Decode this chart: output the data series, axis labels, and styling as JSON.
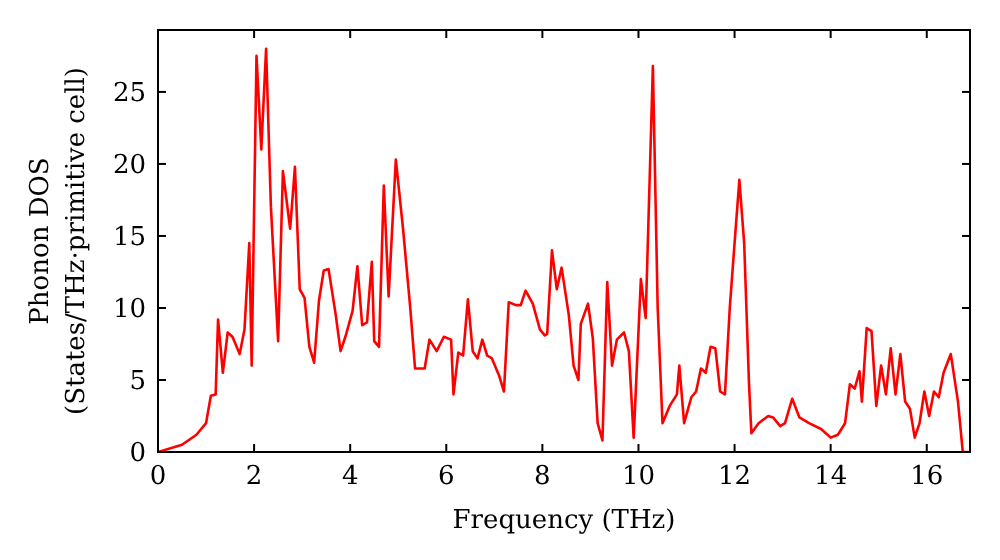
{
  "chart_data": {
    "type": "line",
    "xlabel": "Frequency (THz)",
    "ylabel": "Phonon DOS\n(States/THz·primitive cell)",
    "xlim": [
      0,
      16.9
    ],
    "ylim": [
      0,
      29.3
    ],
    "xticks": [
      0,
      2,
      4,
      6,
      8,
      10,
      12,
      14,
      16
    ],
    "yticks": [
      0,
      5,
      10,
      15,
      20,
      25
    ],
    "grid": false,
    "marker": "none",
    "line_style": "solid",
    "series": [
      {
        "color": "#ff0000",
        "x": [
          0,
          0.5,
          0.8,
          1.0,
          1.1,
          1.2,
          1.25,
          1.35,
          1.45,
          1.55,
          1.7,
          1.8,
          1.9,
          1.95,
          2.05,
          2.15,
          2.25,
          2.35,
          2.5,
          2.6,
          2.75,
          2.85,
          2.95,
          3.05,
          3.15,
          3.25,
          3.35,
          3.45,
          3.55,
          3.7,
          3.8,
          3.9,
          4.05,
          4.15,
          4.25,
          4.35,
          4.45,
          4.5,
          4.6,
          4.7,
          4.8,
          4.95,
          5.1,
          5.25,
          5.35,
          5.55,
          5.65,
          5.8,
          5.95,
          6.1,
          6.15,
          6.25,
          6.35,
          6.45,
          6.55,
          6.65,
          6.75,
          6.85,
          6.95,
          7.1,
          7.2,
          7.3,
          7.45,
          7.55,
          7.65,
          7.8,
          7.95,
          8.05,
          8.1,
          8.2,
          8.3,
          8.4,
          8.55,
          8.65,
          8.75,
          8.8,
          8.95,
          9.05,
          9.15,
          9.25,
          9.35,
          9.45,
          9.55,
          9.7,
          9.8,
          9.9,
          10.05,
          10.15,
          10.3,
          10.4,
          10.5,
          10.65,
          10.8,
          10.85,
          10.95,
          11.1,
          11.2,
          11.3,
          11.4,
          11.5,
          11.6,
          11.7,
          11.8,
          11.9,
          12.0,
          12.1,
          12.2,
          12.3,
          12.35,
          12.5,
          12.7,
          12.8,
          12.95,
          13.05,
          13.2,
          13.35,
          13.55,
          13.8,
          14.0,
          14.15,
          14.3,
          14.4,
          14.5,
          14.6,
          14.65,
          14.75,
          14.85,
          14.95,
          15.05,
          15.15,
          15.25,
          15.35,
          15.45,
          15.55,
          15.65,
          15.75,
          15.85,
          15.95,
          16.05,
          16.15,
          16.25,
          16.35,
          16.5,
          16.65,
          16.75,
          16.9
        ],
        "values": [
          0,
          0.5,
          1.2,
          2,
          3.9,
          4.0,
          9.2,
          5.5,
          8.3,
          8,
          6.8,
          8.5,
          14.5,
          6,
          27.5,
          21,
          28,
          17,
          7.7,
          19.5,
          15.5,
          19.8,
          11.3,
          10.7,
          7.3,
          6.2,
          10.5,
          12.6,
          12.7,
          9.5,
          7,
          8,
          9.8,
          12.9,
          8.8,
          9,
          13.2,
          7.7,
          7.3,
          18.5,
          10.8,
          20.3,
          15.5,
          10,
          5.8,
          5.8,
          7.8,
          7.0,
          8,
          7.8,
          4.0,
          6.9,
          6.7,
          10.6,
          7,
          6.5,
          7.8,
          6.7,
          6.5,
          5.3,
          4.2,
          10.4,
          10.2,
          10.2,
          11.2,
          10.3,
          8.5,
          8.1,
          8.2,
          14,
          11.3,
          12.8,
          9.5,
          6,
          5,
          8.9,
          10.3,
          7.9,
          2,
          0.8,
          11.8,
          6,
          7.8,
          8.3,
          7,
          1,
          12,
          9.3,
          26.8,
          10,
          2,
          3.2,
          4,
          6,
          2,
          3.8,
          4.2,
          5.8,
          5.5,
          7.3,
          7.2,
          4.2,
          4,
          10,
          14.5,
          18.9,
          14.5,
          4.8,
          1.3,
          2,
          2.5,
          2.4,
          1.8,
          2,
          3.7,
          2.4,
          2,
          1.6,
          1.0,
          1.2,
          2,
          4.7,
          4.4,
          5.6,
          3.5,
          8.6,
          8.4,
          3.2,
          6,
          4,
          7.2,
          4,
          6.8,
          3.5,
          3,
          1,
          2,
          4.2,
          2.5,
          4.2,
          3.8,
          5.5,
          6.8,
          3.5,
          0,
          0
        ]
      }
    ]
  }
}
